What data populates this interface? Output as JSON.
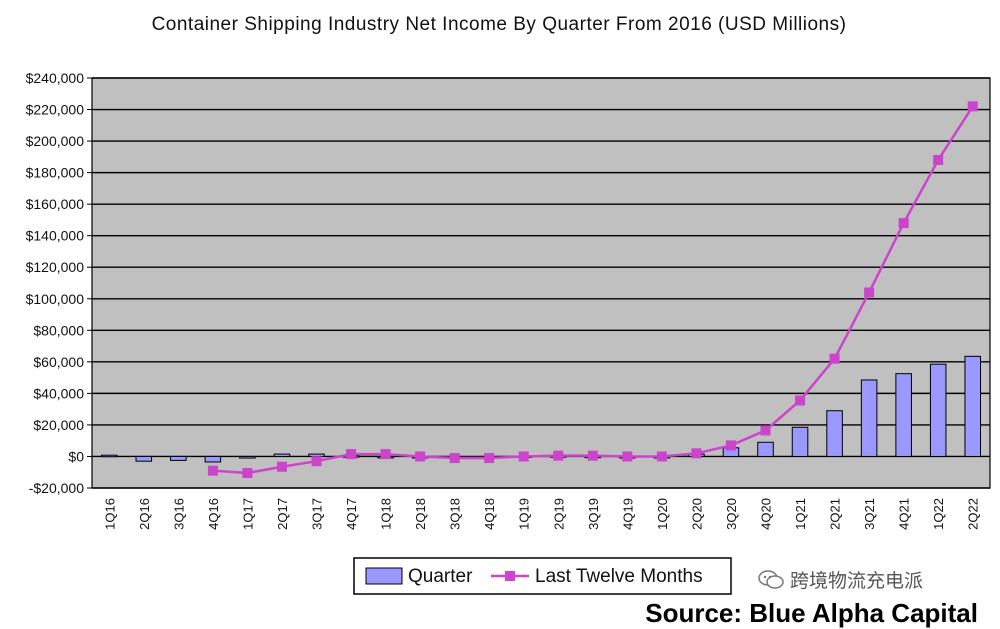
{
  "chart_data": {
    "type": "bar",
    "title": "Container Shipping Industry Net Income By Quarter From 2016 (USD Millions)",
    "xlabel": "",
    "ylabel": "",
    "ylim": [
      -20000,
      240000
    ],
    "yticks": [
      -20000,
      0,
      20000,
      40000,
      60000,
      80000,
      100000,
      120000,
      140000,
      160000,
      180000,
      200000,
      220000,
      240000
    ],
    "ytick_labels": [
      "-$20,000",
      "$0",
      "$20,000",
      "$40,000",
      "$60,000",
      "$80,000",
      "$100,000",
      "$120,000",
      "$140,000",
      "$160,000",
      "$180,000",
      "$200,000",
      "$220,000",
      "$240,000"
    ],
    "categories": [
      "1Q16",
      "2Q16",
      "3Q16",
      "4Q16",
      "1Q17",
      "2Q17",
      "3Q17",
      "4Q17",
      "1Q18",
      "2Q18",
      "3Q18",
      "4Q18",
      "1Q19",
      "2Q19",
      "3Q19",
      "4Q19",
      "1Q20",
      "2Q20",
      "3Q20",
      "4Q20",
      "1Q21",
      "2Q21",
      "3Q21",
      "4Q21",
      "1Q22",
      "2Q22"
    ],
    "series": [
      {
        "name": "Quarter",
        "type": "bar",
        "color": "#9999ff",
        "values": [
          800,
          -3000,
          -2500,
          -3500,
          -1000,
          1500,
          1500,
          500,
          0,
          -300,
          -800,
          -400,
          300,
          500,
          200,
          0,
          0,
          1500,
          5500,
          9000,
          18500,
          29000,
          48500,
          52500,
          58500,
          63500
        ]
      },
      {
        "name": "Last Twelve Months",
        "type": "line",
        "color": "#cc44cc",
        "values": [
          null,
          null,
          null,
          -9000,
          -10500,
          -6500,
          -3000,
          1500,
          1500,
          0,
          -1000,
          -1000,
          0,
          500,
          500,
          0,
          0,
          2000,
          7000,
          16500,
          35500,
          62000,
          104000,
          148000,
          188000,
          222000
        ]
      }
    ],
    "grid": true,
    "plot_background": "#c0c0c0",
    "legend": {
      "position": "bottom"
    }
  },
  "source_text": "Source: Blue Alpha Capital",
  "watermark_text": "跨境物流充电派"
}
